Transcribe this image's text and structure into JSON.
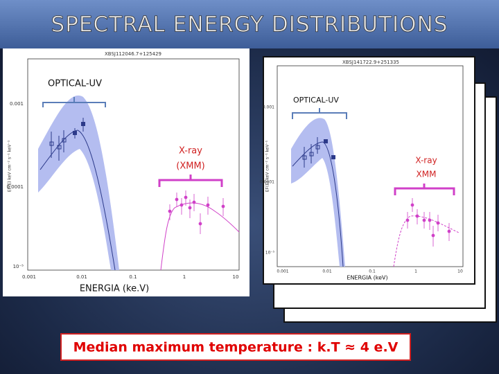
{
  "header": {
    "title": "SPECTRAL ENERGY DISTRIBUTIONS"
  },
  "left_plot": {
    "source": "XBSJ112046.7+125429",
    "y_axis_label": "EF(E) keV cm⁻² s⁻¹ keV⁻¹",
    "yticks": [
      "0.001",
      "0.0001",
      "10⁻⁵"
    ],
    "xticks": [
      "0.001",
      "0.01",
      "0.1",
      "1",
      "10"
    ],
    "optical_label": "OPTICAL-UV",
    "xray_label": [
      "X-ray",
      "(XMM)"
    ],
    "x_axis_label": "ENERGIA (ke.V)"
  },
  "right_plot": {
    "source": "XBSJ141722.9+251335",
    "y_axis_label": "EF(E) keV cm⁻² s⁻¹ keV⁻¹",
    "yticks": [
      "0.001",
      "0.0001",
      "10⁻⁵"
    ],
    "xticks": [
      "0.001",
      "0.01",
      "0.1",
      "1",
      "10"
    ],
    "optical_label": "OPTICAL-UV",
    "xray_label": [
      "X-ray",
      "XMM"
    ],
    "x_axis_label": "ENERGIA (keV)"
  },
  "footer": {
    "text": "Median maximum temperature : k.T ≈ 4 e.V"
  }
}
